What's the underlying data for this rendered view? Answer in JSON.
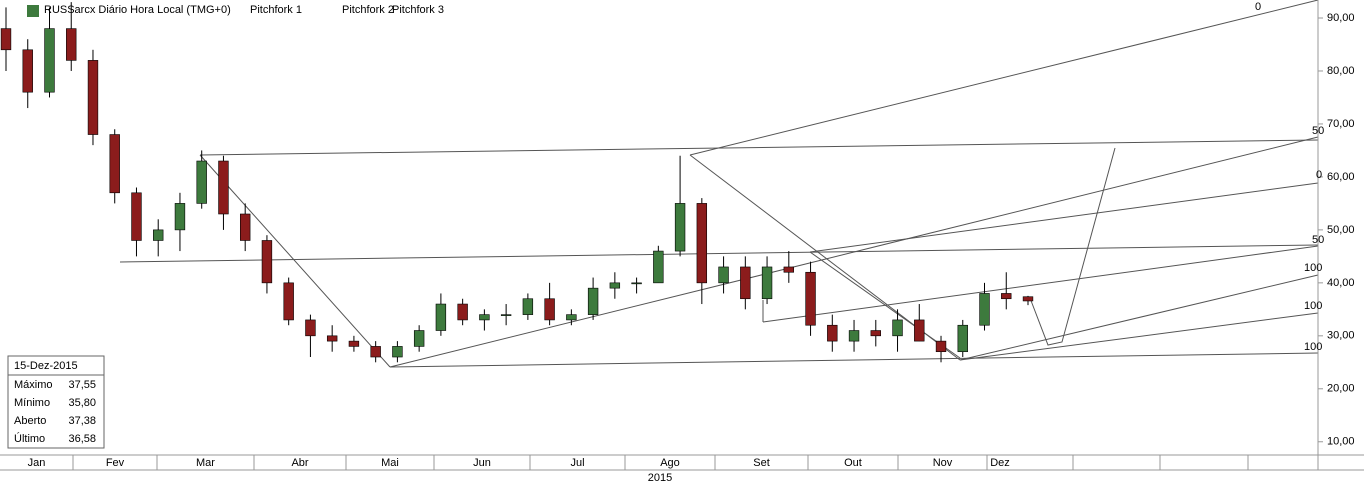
{
  "chart_data": {
    "type": "candlestick",
    "title": "RUSSarcx Diário Hora Local (TMG+0)",
    "menus": [
      "Pitchfork 1",
      "Pitchfork 2",
      "Pitchfork 3"
    ],
    "categories": [
      "Jan",
      "Fev",
      "Mar",
      "Abr",
      "Mai",
      "Jun",
      "Jul",
      "Ago",
      "Set",
      "Out",
      "Nov",
      "Dez",
      null,
      null,
      null
    ],
    "year": "2015",
    "ylim": [
      7.5,
      93.4
    ],
    "yticks": [
      {
        "value": 10,
        "label": "10,00"
      },
      {
        "value": 20,
        "label": "20,00"
      },
      {
        "value": 30,
        "label": "30,00"
      },
      {
        "value": 40,
        "label": "40,00"
      },
      {
        "value": 50,
        "label": "50,00"
      },
      {
        "value": 60,
        "label": "60,00"
      },
      {
        "value": 70,
        "label": "70,00"
      },
      {
        "value": 80,
        "label": "80,00"
      },
      {
        "value": 90,
        "label": "90,00"
      }
    ],
    "up_color": "#3d7a3d",
    "down_color": "#8b1c1c",
    "open": [
      88,
      84,
      76,
      88,
      82,
      68,
      57,
      48,
      50,
      55,
      63,
      53,
      48,
      40,
      33,
      30,
      29,
      28,
      26,
      28,
      31,
      36,
      33,
      34,
      34,
      37,
      33,
      34,
      39,
      40,
      40,
      46,
      55,
      40,
      43,
      37,
      43,
      42,
      32,
      29,
      31,
      30,
      33,
      29,
      27,
      32,
      38,
      37.38
    ],
    "high": [
      92,
      86,
      92,
      93,
      84,
      69,
      58,
      52,
      57,
      65,
      64,
      55,
      49,
      41,
      34,
      32,
      30,
      29,
      29,
      32,
      38,
      37,
      35,
      36,
      38,
      40,
      35,
      41,
      42,
      41,
      47,
      64,
      56,
      45,
      45,
      45,
      46,
      44,
      34,
      33,
      33,
      35,
      36,
      30,
      33,
      40,
      42,
      37.55
    ],
    "low": [
      80,
      73,
      75,
      80,
      66,
      55,
      45,
      45,
      46,
      54,
      50,
      46,
      38,
      32,
      26,
      27,
      27,
      25,
      25,
      27,
      30,
      32,
      31,
      32,
      33,
      32,
      32,
      33,
      37,
      38,
      40,
      45,
      36,
      38,
      35,
      36,
      40,
      30,
      27,
      27,
      28,
      27,
      29,
      25,
      26,
      31,
      35,
      35.8
    ],
    "close": [
      84,
      76,
      88,
      82,
      68,
      57,
      48,
      50,
      55,
      63,
      53,
      48,
      40,
      33,
      30,
      29,
      28,
      26,
      28,
      31,
      36,
      33,
      34,
      34,
      37,
      33,
      34,
      39,
      40,
      40,
      46,
      55,
      40,
      43,
      37,
      43,
      42,
      32,
      29,
      31,
      30,
      33,
      29,
      27,
      32,
      38,
      37,
      36.58
    ],
    "fork_labels": [
      "0",
      "50",
      "0",
      "50",
      "100",
      "100",
      "100"
    ],
    "info_box": {
      "title": "15-Dez-2015",
      "rows": [
        [
          "Máximo",
          "37,55"
        ],
        [
          "Mínimo",
          "35,80"
        ],
        [
          "Aberto",
          "37,38"
        ],
        [
          "Último",
          "36,58"
        ]
      ]
    }
  }
}
